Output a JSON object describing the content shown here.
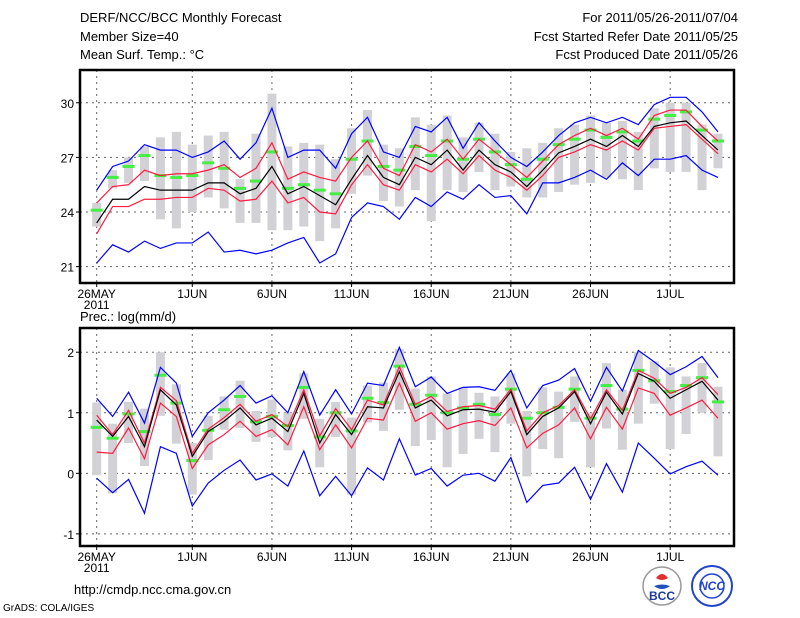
{
  "header": {
    "title": "DERF/NCC/BCC Monthly Forecast",
    "member_size": "Member Size=40",
    "variable": "Mean Surf. Temp.: °C",
    "period": "For 2011/05/26-2011/07/04",
    "started": "Fcst Started Refer Date 2011/05/25",
    "produced": "Fcst Produced Date 2011/05/26"
  },
  "footer": {
    "url": "http://cmdp.ncc.cma.gov.cn",
    "credit": "GrADS: COLA/IGES",
    "logo1": "BCC",
    "logo2": "NCC"
  },
  "colors": {
    "max_min": "#0000ff",
    "spread": "#ff1a40",
    "mean": "#000000",
    "obs": "#44ee44",
    "box": "#d2d2d6"
  },
  "chart_data": [
    {
      "type": "line",
      "title": "Mean Surf. Temp.: °C",
      "ylim": [
        20.1,
        31.8
      ],
      "yticks": [
        21,
        24,
        27,
        30
      ],
      "xtick_days": [
        0,
        6,
        11,
        16,
        21,
        26,
        31,
        36
      ],
      "xtick_labels": [
        "26MAY",
        "1JUN",
        "6JUN",
        "11JUN",
        "16JUN",
        "21JUN",
        "26JUN",
        "1JUL"
      ],
      "year_label": "2011",
      "grid": true,
      "series": [
        {
          "name": "max",
          "values": [
            25.2,
            26.5,
            26.8,
            27.7,
            27.4,
            27.4,
            27.0,
            27.3,
            27.9,
            26.9,
            27.8,
            29.7,
            27.0,
            27.4,
            27.4,
            26.4,
            28.3,
            29.2,
            27.3,
            27.0,
            28.7,
            28.4,
            29.2,
            27.5,
            28.9,
            27.9,
            27.0,
            26.5,
            27.3,
            28.2,
            28.9,
            29.2,
            28.9,
            29.2,
            28.8,
            29.9,
            30.3,
            30.3,
            29.5,
            28.4
          ]
        },
        {
          "name": "min",
          "values": [
            21.2,
            22.2,
            21.8,
            22.4,
            22.0,
            22.3,
            22.3,
            22.9,
            21.8,
            21.9,
            21.7,
            21.9,
            22.3,
            22.6,
            21.2,
            21.7,
            23.7,
            24.5,
            24.3,
            23.6,
            24.8,
            24.3,
            25.1,
            24.7,
            25.5,
            24.8,
            24.9,
            23.9,
            25.6,
            25.6,
            25.9,
            26.3,
            25.8,
            26.7,
            26.0,
            26.9,
            26.9,
            27.1,
            26.3,
            25.9
          ]
        },
        {
          "name": "upper",
          "values": [
            24.5,
            25.4,
            25.5,
            26.3,
            26.0,
            26.1,
            26.1,
            26.3,
            26.6,
            25.9,
            26.4,
            27.8,
            25.8,
            26.2,
            25.9,
            25.7,
            27.0,
            27.9,
            26.4,
            26.0,
            27.7,
            27.3,
            28.0,
            26.9,
            28.0,
            27.3,
            26.6,
            25.9,
            26.8,
            27.7,
            28.2,
            28.6,
            28.2,
            28.6,
            28.0,
            29.3,
            29.6,
            29.6,
            28.7,
            27.9
          ]
        },
        {
          "name": "lower",
          "values": [
            22.8,
            24.3,
            24.3,
            24.7,
            24.7,
            24.8,
            24.8,
            25.3,
            25.2,
            24.6,
            24.7,
            25.7,
            24.5,
            24.8,
            24.0,
            23.9,
            25.5,
            26.6,
            25.5,
            25.2,
            26.6,
            26.2,
            26.9,
            26.1,
            27.1,
            26.3,
            25.9,
            25.2,
            26.0,
            27.0,
            27.3,
            27.7,
            27.4,
            27.9,
            27.4,
            28.6,
            28.7,
            28.8,
            28.0,
            27.2
          ]
        },
        {
          "name": "mean",
          "values": [
            23.4,
            24.7,
            24.7,
            25.4,
            25.2,
            25.2,
            25.2,
            25.6,
            25.6,
            25.0,
            25.3,
            26.5,
            25.0,
            25.4,
            24.9,
            24.4,
            25.8,
            27.1,
            25.9,
            25.5,
            27.0,
            26.6,
            27.4,
            26.3,
            27.4,
            26.6,
            26.2,
            25.4,
            26.3,
            27.25,
            27.6,
            28.0,
            27.6,
            28.2,
            27.6,
            28.7,
            28.9,
            29.0,
            28.2,
            27.4
          ]
        },
        {
          "name": "obs",
          "values": [
            24.1,
            25.9,
            26.5,
            27.1,
            26.0,
            25.9,
            26.0,
            26.7,
            26.4,
            25.3,
            25.7,
            27.3,
            25.3,
            25.5,
            25.2,
            25.0,
            26.9,
            27.9,
            26.5,
            26.3,
            27.6,
            27.1,
            27.9,
            26.9,
            28.0,
            27.3,
            26.6,
            25.8,
            26.9,
            27.7,
            28.0,
            28.5,
            28.1,
            28.4,
            27.9,
            29.1,
            29.3,
            29.5,
            28.5,
            27.9
          ]
        },
        {
          "name": "box_high",
          "values": [
            24.5,
            26.3,
            27.0,
            27.6,
            28.1,
            28.4,
            27.7,
            28.2,
            28.4,
            25.8,
            28.3,
            30.5,
            27.6,
            27.8,
            27.7,
            26.9,
            28.6,
            29.6,
            27.7,
            27.5,
            29.2,
            28.8,
            29.3,
            28.1,
            28.9,
            28.3,
            27.3,
            27.5,
            27.8,
            28.6,
            28.8,
            29.3,
            28.9,
            29.0,
            28.4,
            29.7,
            30.0,
            30.0,
            28.8,
            28.3
          ]
        },
        {
          "name": "box_low",
          "values": [
            23.2,
            25.3,
            25.6,
            25.7,
            23.6,
            23.1,
            24.0,
            24.8,
            24.2,
            23.4,
            23.4,
            23.0,
            23.0,
            23.2,
            22.4,
            23.1,
            25.0,
            26.0,
            24.6,
            24.3,
            25.2,
            23.5,
            25.2,
            25.1,
            26.2,
            25.2,
            25.4,
            24.8,
            24.8,
            25.1,
            25.5,
            25.6,
            25.9,
            25.8,
            25.2,
            26.4,
            26.2,
            26.2,
            25.2,
            26.4
          ]
        }
      ]
    },
    {
      "type": "line",
      "title": "Prec.: log(mm/d)",
      "ylim": [
        -1.2,
        2.4
      ],
      "yticks": [
        -1,
        0,
        1,
        2
      ],
      "xtick_days": [
        0,
        6,
        11,
        16,
        21,
        26,
        31,
        36
      ],
      "xtick_labels": [
        "26MAY",
        "1JUN",
        "6JUN",
        "11JUN",
        "16JUN",
        "21JUN",
        "26JUN",
        "1JUL"
      ],
      "year_label": "2011",
      "grid": true,
      "series": [
        {
          "name": "max",
          "values": [
            1.24,
            0.94,
            1.34,
            0.83,
            1.75,
            1.49,
            0.61,
            1.0,
            1.21,
            1.45,
            1.16,
            1.28,
            1.0,
            1.68,
            0.96,
            1.38,
            0.98,
            1.49,
            1.45,
            2.08,
            1.43,
            1.59,
            1.32,
            1.42,
            1.43,
            1.37,
            1.7,
            1.08,
            1.45,
            1.54,
            1.73,
            1.19,
            1.75,
            1.36,
            2.03,
            1.84,
            1.63,
            1.76,
            1.93,
            1.58
          ]
        },
        {
          "name": "min",
          "values": [
            -0.08,
            -0.32,
            -0.1,
            -0.66,
            0.44,
            0.33,
            -0.54,
            -0.16,
            0.05,
            0.22,
            -0.11,
            -0.01,
            -0.21,
            0.37,
            -0.37,
            -0.05,
            -0.37,
            0.09,
            -0.11,
            0.57,
            -0.03,
            0.08,
            -0.21,
            -0.03,
            0.0,
            -0.13,
            0.26,
            -0.48,
            -0.2,
            -0.16,
            0.1,
            -0.43,
            0.16,
            -0.31,
            0.5,
            0.25,
            -0.01,
            0.11,
            0.2,
            -0.03
          ]
        },
        {
          "name": "upper",
          "values": [
            0.96,
            0.64,
            1.04,
            0.5,
            1.42,
            1.2,
            0.33,
            0.73,
            0.92,
            1.14,
            0.86,
            0.97,
            0.77,
            1.38,
            0.62,
            1.07,
            0.72,
            1.21,
            1.13,
            1.76,
            1.14,
            1.27,
            1.02,
            1.1,
            1.12,
            1.06,
            1.39,
            0.7,
            1.0,
            1.12,
            1.38,
            0.9,
            1.38,
            1.04,
            1.7,
            1.57,
            1.32,
            1.42,
            1.58,
            1.3
          ]
        },
        {
          "name": "lower",
          "values": [
            0.35,
            0.33,
            0.75,
            0.24,
            1.16,
            0.94,
            0.08,
            0.47,
            0.64,
            0.86,
            0.61,
            0.72,
            0.47,
            1.1,
            0.39,
            0.8,
            0.42,
            0.91,
            0.88,
            1.49,
            0.86,
            1.0,
            0.73,
            0.82,
            0.87,
            0.79,
            1.08,
            0.42,
            0.66,
            0.8,
            1.08,
            0.57,
            1.09,
            0.73,
            1.41,
            1.32,
            0.96,
            1.08,
            1.21,
            0.91
          ]
        },
        {
          "name": "mean",
          "values": [
            0.88,
            0.61,
            0.94,
            0.44,
            1.38,
            1.13,
            0.28,
            0.69,
            0.86,
            1.08,
            0.8,
            0.91,
            0.69,
            1.32,
            0.5,
            0.97,
            0.64,
            1.1,
            1.08,
            1.68,
            1.08,
            1.21,
            0.95,
            1.05,
            1.06,
            1.01,
            1.35,
            0.64,
            0.94,
            1.08,
            1.35,
            0.82,
            1.34,
            0.98,
            1.65,
            1.52,
            1.24,
            1.38,
            1.52,
            1.21
          ]
        },
        {
          "name": "obs",
          "values": [
            0.76,
            0.58,
            0.98,
            0.69,
            1.62,
            1.16,
            0.21,
            0.71,
            1.05,
            1.27,
            0.85,
            0.94,
            0.79,
            1.42,
            0.6,
            1.0,
            0.7,
            1.24,
            1.17,
            1.77,
            1.14,
            1.29,
            1.0,
            1.08,
            1.14,
            0.97,
            1.39,
            0.91,
            1.0,
            1.09,
            1.39,
            0.91,
            1.45,
            1.06,
            1.7,
            1.53,
            1.35,
            1.45,
            1.58,
            1.18
          ]
        },
        {
          "name": "box_high",
          "values": [
            1.17,
            0.82,
            1.18,
            1.07,
            2.0,
            1.47,
            0.5,
            0.95,
            1.27,
            1.53,
            1.03,
            1.22,
            1.0,
            1.65,
            0.9,
            1.18,
            0.92,
            1.45,
            1.5,
            2.05,
            1.4,
            1.6,
            1.32,
            1.42,
            1.33,
            1.27,
            1.65,
            1.03,
            1.42,
            1.35,
            1.6,
            1.0,
            1.82,
            1.38,
            2.0,
            1.85,
            1.75,
            1.6,
            1.82,
            1.43
          ]
        },
        {
          "name": "box_low",
          "values": [
            -0.03,
            -0.33,
            0.5,
            0.12,
            0.95,
            0.49,
            -0.35,
            0.22,
            0.72,
            0.75,
            0.52,
            0.6,
            0.38,
            0.9,
            0.1,
            0.6,
            -0.35,
            0.84,
            0.7,
            1.05,
            0.45,
            0.55,
            0.1,
            0.32,
            0.57,
            0.35,
            0.82,
            -0.05,
            0.4,
            0.25,
            0.85,
            0.1,
            0.74,
            0.39,
            0.82,
            1.15,
            0.4,
            0.65,
            1.0,
            0.28
          ]
        }
      ]
    }
  ]
}
